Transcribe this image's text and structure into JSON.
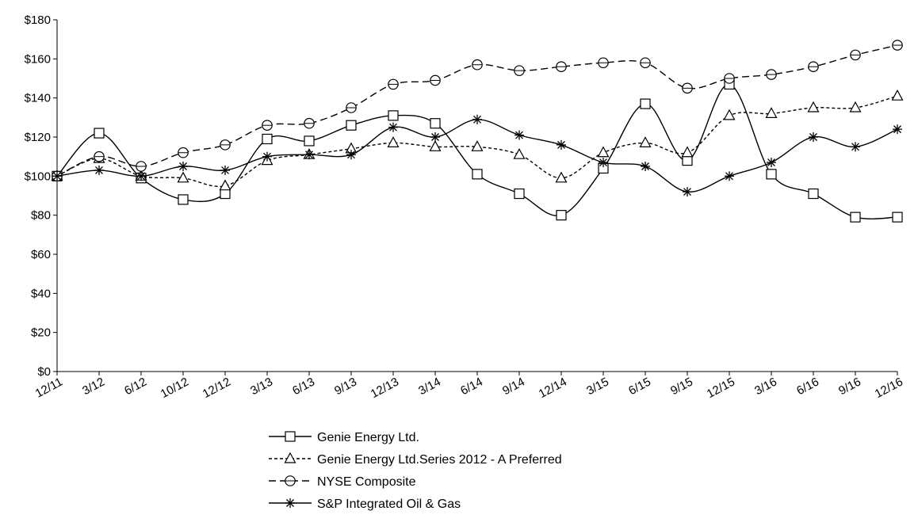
{
  "chart_data": {
    "type": "line",
    "categories": [
      "12/11",
      "3/12",
      "6/12",
      "10/12",
      "12/12",
      "3/13",
      "6/13",
      "9/13",
      "12/13",
      "3/14",
      "6/14",
      "9/14",
      "12/14",
      "3/15",
      "6/15",
      "9/15",
      "12/15",
      "3/16",
      "6/16",
      "9/16",
      "12/16"
    ],
    "y_ticks": [
      "$0",
      "$20",
      "$40",
      "$60",
      "$80",
      "$100",
      "$120",
      "$140",
      "$160",
      "$180"
    ],
    "ylim": [
      0,
      180
    ],
    "grid": false,
    "legend_position": "bottom",
    "series": [
      {
        "name": "Genie Energy Ltd.",
        "marker": "square",
        "dash": "solid",
        "values": [
          100,
          122,
          99,
          88,
          91,
          119,
          118,
          126,
          131,
          127,
          101,
          91,
          80,
          104,
          137,
          108,
          147,
          101,
          91,
          79,
          79
        ]
      },
      {
        "name": "Genie Energy Ltd.Series 2012 - A Preferred",
        "marker": "triangle",
        "dash": "dotted",
        "values": [
          100,
          109,
          100,
          99,
          95,
          108,
          111,
          114,
          117,
          115,
          115,
          111,
          99,
          112,
          117,
          112,
          131,
          132,
          135,
          135,
          141
        ]
      },
      {
        "name": "NYSE Composite",
        "marker": "circle",
        "dash": "dashed",
        "values": [
          100,
          110,
          105,
          112,
          116,
          126,
          127,
          135,
          147,
          149,
          157,
          154,
          156,
          158,
          158,
          145,
          150,
          152,
          156,
          162,
          167
        ]
      },
      {
        "name": "S&P Integrated Oil & Gas",
        "marker": "star",
        "dash": "solid",
        "values": [
          100,
          103,
          100,
          105,
          103,
          110,
          111,
          111,
          125,
          120,
          129,
          121,
          116,
          107,
          105,
          92,
          100,
          107,
          120,
          115,
          124
        ]
      }
    ]
  }
}
